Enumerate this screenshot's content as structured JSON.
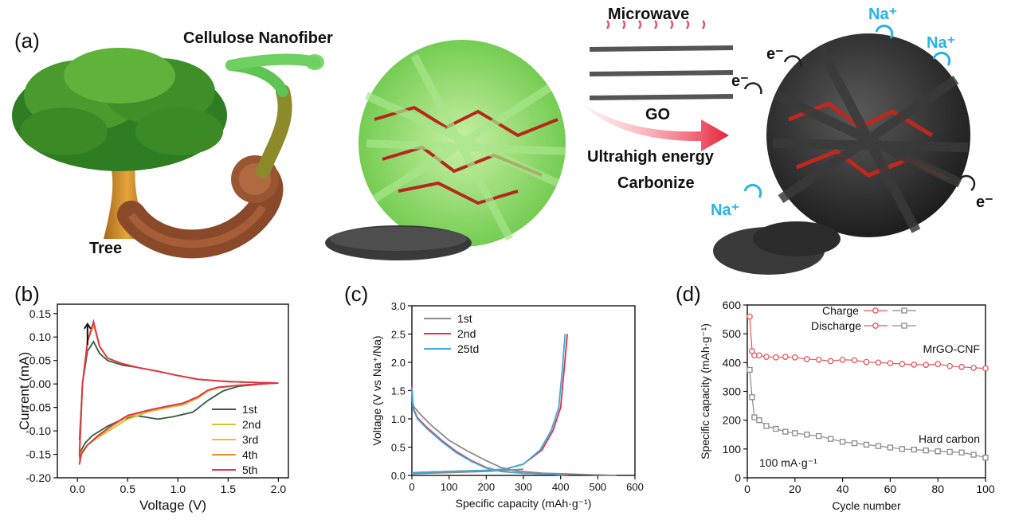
{
  "panel_a": {
    "letter": "(a)",
    "labels": {
      "cellulose": "Cellulose Nanofiber",
      "tree": "Tree",
      "microwave": "Microwave",
      "go": "GO",
      "energy": "Ultrahigh energy",
      "carbonize": "Carbonize",
      "na": "Na⁺",
      "electron": "e⁻"
    },
    "icons": [
      "tree-icon",
      "nanofiber-bundle-icon",
      "green-fiber-network-icon",
      "microwave-waves-icon",
      "graphene-oxide-sheet-icon",
      "arrow-right-icon",
      "carbon-fiber-network-icon",
      "cycle-arrows-icon",
      "sample-film-icon"
    ],
    "colors": {
      "na": "#27b3e6",
      "arrow": "#e8213a",
      "fiber_green": "#7fd65a",
      "graphene_red": "#b4281e",
      "carbon": "#2b2b2b"
    }
  },
  "chart_data": [
    {
      "id": "b",
      "letter": "(b)",
      "type": "line",
      "xlabel": "Voltage (V)",
      "ylabel": "Current (mA)",
      "xlim": [
        -0.2,
        2.1
      ],
      "ylim": [
        -0.2,
        0.17
      ],
      "xticks": [
        "0.0",
        "0.5",
        "1.0",
        "1.5",
        "2.0"
      ],
      "yticks": [
        "-0.20",
        "-0.15",
        "-0.10",
        "-0.05",
        "0.00",
        "0.05",
        "0.10",
        "0.15"
      ],
      "legend_position": "bottom-right",
      "series": [
        {
          "name": "1st",
          "color": "#2f5f3a",
          "x": [
            0.02,
            0.05,
            0.1,
            0.16,
            0.22,
            0.3,
            0.45,
            0.6,
            0.8,
            1.0,
            1.2,
            1.5,
            1.8,
            2.0,
            1.9,
            1.6,
            1.45,
            1.3,
            1.15,
            0.95,
            0.8,
            0.6,
            0.45,
            0.3,
            0.15,
            0.08,
            0.04,
            0.02
          ],
          "y": [
            -0.12,
            0.0,
            0.07,
            0.09,
            0.065,
            0.05,
            0.04,
            0.035,
            0.027,
            0.018,
            0.01,
            0.005,
            0.003,
            0.002,
            0.001,
            -0.005,
            -0.015,
            -0.035,
            -0.06,
            -0.07,
            -0.075,
            -0.068,
            -0.075,
            -0.09,
            -0.11,
            -0.125,
            -0.14,
            -0.16
          ]
        },
        {
          "name": "2nd",
          "color": "#c8c43c",
          "x": [
            0.02,
            0.05,
            0.1,
            0.16,
            0.22,
            0.3,
            0.45,
            0.6,
            0.8,
            1.0,
            1.2,
            1.5,
            1.8,
            2.0,
            1.9,
            1.6,
            1.4,
            1.3,
            1.2,
            1.05,
            0.9,
            0.7,
            0.5,
            0.35,
            0.2,
            0.1,
            0.04,
            0.02
          ],
          "y": [
            -0.14,
            0.0,
            0.09,
            0.125,
            0.08,
            0.055,
            0.043,
            0.035,
            0.027,
            0.018,
            0.01,
            0.005,
            0.003,
            0.002,
            0.001,
            -0.003,
            -0.008,
            -0.015,
            -0.03,
            -0.045,
            -0.05,
            -0.06,
            -0.075,
            -0.095,
            -0.115,
            -0.13,
            -0.145,
            -0.165
          ]
        },
        {
          "name": "3rd",
          "color": "#f0b93a",
          "x": [
            0.02,
            0.05,
            0.1,
            0.16,
            0.22,
            0.3,
            0.45,
            0.6,
            0.8,
            1.0,
            1.2,
            1.5,
            1.8,
            2.0,
            1.9,
            1.6,
            1.4,
            1.3,
            1.2,
            1.05,
            0.9,
            0.7,
            0.5,
            0.35,
            0.2,
            0.1,
            0.04,
            0.02
          ],
          "y": [
            -0.145,
            0.0,
            0.09,
            0.128,
            0.08,
            0.055,
            0.043,
            0.035,
            0.027,
            0.018,
            0.01,
            0.005,
            0.003,
            0.002,
            0.001,
            -0.003,
            -0.008,
            -0.015,
            -0.029,
            -0.043,
            -0.049,
            -0.058,
            -0.07,
            -0.09,
            -0.113,
            -0.13,
            -0.147,
            -0.168
          ]
        },
        {
          "name": "4th",
          "color": "#f08a2a",
          "x": [
            0.02,
            0.05,
            0.1,
            0.16,
            0.22,
            0.3,
            0.45,
            0.6,
            0.8,
            1.0,
            1.2,
            1.5,
            1.8,
            2.0,
            1.9,
            1.6,
            1.4,
            1.3,
            1.2,
            1.05,
            0.9,
            0.7,
            0.5,
            0.35,
            0.2,
            0.1,
            0.04,
            0.02
          ],
          "y": [
            -0.15,
            0.0,
            0.09,
            0.13,
            0.08,
            0.055,
            0.043,
            0.035,
            0.027,
            0.018,
            0.01,
            0.005,
            0.003,
            0.002,
            0.001,
            -0.003,
            -0.008,
            -0.014,
            -0.028,
            -0.042,
            -0.048,
            -0.057,
            -0.068,
            -0.088,
            -0.112,
            -0.13,
            -0.148,
            -0.17
          ]
        },
        {
          "name": "5th",
          "color": "#e0304a",
          "x": [
            0.02,
            0.05,
            0.1,
            0.16,
            0.22,
            0.3,
            0.45,
            0.6,
            0.8,
            1.0,
            1.2,
            1.5,
            1.8,
            2.0,
            1.9,
            1.6,
            1.4,
            1.3,
            1.2,
            1.05,
            0.9,
            0.7,
            0.5,
            0.35,
            0.2,
            0.1,
            0.04,
            0.02
          ],
          "y": [
            -0.155,
            0.0,
            0.09,
            0.133,
            0.08,
            0.055,
            0.043,
            0.035,
            0.027,
            0.018,
            0.01,
            0.005,
            0.003,
            0.002,
            0.001,
            -0.003,
            -0.007,
            -0.013,
            -0.027,
            -0.041,
            -0.047,
            -0.056,
            -0.067,
            -0.087,
            -0.111,
            -0.13,
            -0.149,
            -0.172
          ]
        }
      ],
      "annotation": "up-arrow-icon"
    },
    {
      "id": "c",
      "letter": "(c)",
      "type": "line",
      "xlabel": "Specific capacity (mAh·g⁻¹)",
      "ylabel": "Voltage (V vs Na⁺/Na)",
      "xlim": [
        0,
        600
      ],
      "ylim": [
        0,
        3.0
      ],
      "xticks": [
        "0",
        "100",
        "200",
        "300",
        "400",
        "500",
        "600"
      ],
      "yticks": [
        "0.0",
        "0.5",
        "1.0",
        "1.5",
        "2.0",
        "2.5",
        "3.0"
      ],
      "legend_position": "top-left",
      "series": [
        {
          "name": "1st",
          "color": "#8a8a8a",
          "x": [
            0,
            5,
            20,
            50,
            100,
            150,
            200,
            240,
            280,
            350,
            450,
            550
          ],
          "y": [
            1.35,
            1.22,
            1.1,
            0.9,
            0.62,
            0.43,
            0.26,
            0.14,
            0.08,
            0.04,
            0.02,
            0.0
          ],
          "x2": [
            0,
            100,
            200,
            250,
            300
          ],
          "y2": [
            0.03,
            0.05,
            0.07,
            0.09,
            0.11
          ]
        },
        {
          "name": "2nd",
          "color": "#e0304a",
          "x": [
            0,
            3,
            15,
            40,
            80,
            120,
            160,
            200,
            240,
            300,
            380,
            420
          ],
          "y": [
            1.6,
            1.2,
            1.02,
            0.85,
            0.62,
            0.42,
            0.26,
            0.14,
            0.07,
            0.04,
            0.02,
            0.0
          ],
          "x2": [
            0,
            100,
            200,
            250,
            300,
            350,
            380,
            400,
            410,
            418
          ],
          "y2": [
            0.05,
            0.07,
            0.09,
            0.11,
            0.2,
            0.45,
            0.8,
            1.2,
            1.9,
            2.5
          ]
        },
        {
          "name": "25td",
          "color": "#3aaad8",
          "x": [
            0,
            3,
            15,
            40,
            80,
            120,
            160,
            200,
            240,
            300,
            380,
            410
          ],
          "y": [
            1.55,
            1.18,
            1.0,
            0.83,
            0.6,
            0.4,
            0.25,
            0.13,
            0.07,
            0.04,
            0.02,
            0.0
          ],
          "x2": [
            0,
            100,
            200,
            250,
            300,
            345,
            375,
            395,
            405,
            412
          ],
          "y2": [
            0.05,
            0.07,
            0.09,
            0.11,
            0.2,
            0.45,
            0.8,
            1.2,
            1.9,
            2.5
          ]
        }
      ]
    },
    {
      "id": "d",
      "letter": "(d)",
      "type": "scatter",
      "xlabel": "Cycle number",
      "ylabel": "Specific capacity (mAh·g⁻¹)",
      "xlim": [
        0,
        100
      ],
      "ylim": [
        0,
        600
      ],
      "xticks": [
        "0",
        "20",
        "40",
        "60",
        "80",
        "100"
      ],
      "yticks": [
        "0",
        "100",
        "200",
        "300",
        "400",
        "500",
        "600"
      ],
      "legend_position": "top",
      "legend": [
        "Charge",
        "Discharge"
      ],
      "annotations": {
        "mrgo": "MrGO-CNF",
        "hard": "Hard carbon",
        "rate": "100 mA·g⁻¹"
      },
      "series": [
        {
          "name": "MrGO-CNF",
          "color": "#e8565a",
          "x": [
            1,
            2,
            3,
            5,
            8,
            12,
            16,
            20,
            25,
            30,
            35,
            40,
            45,
            50,
            55,
            60,
            65,
            70,
            75,
            80,
            85,
            90,
            95,
            100
          ],
          "y": [
            560,
            440,
            425,
            425,
            420,
            418,
            420,
            418,
            412,
            410,
            405,
            410,
            408,
            402,
            400,
            398,
            395,
            393,
            392,
            395,
            388,
            385,
            382,
            380
          ]
        },
        {
          "name": "Hard carbon",
          "color": "#8a8a8a",
          "x": [
            1,
            2,
            3,
            5,
            8,
            12,
            16,
            20,
            25,
            30,
            35,
            40,
            45,
            50,
            55,
            60,
            65,
            70,
            75,
            80,
            85,
            90,
            95,
            100
          ],
          "y": [
            375,
            280,
            210,
            200,
            180,
            170,
            160,
            155,
            150,
            145,
            135,
            125,
            120,
            115,
            110,
            105,
            100,
            98,
            95,
            92,
            90,
            88,
            80,
            70
          ]
        }
      ]
    }
  ]
}
